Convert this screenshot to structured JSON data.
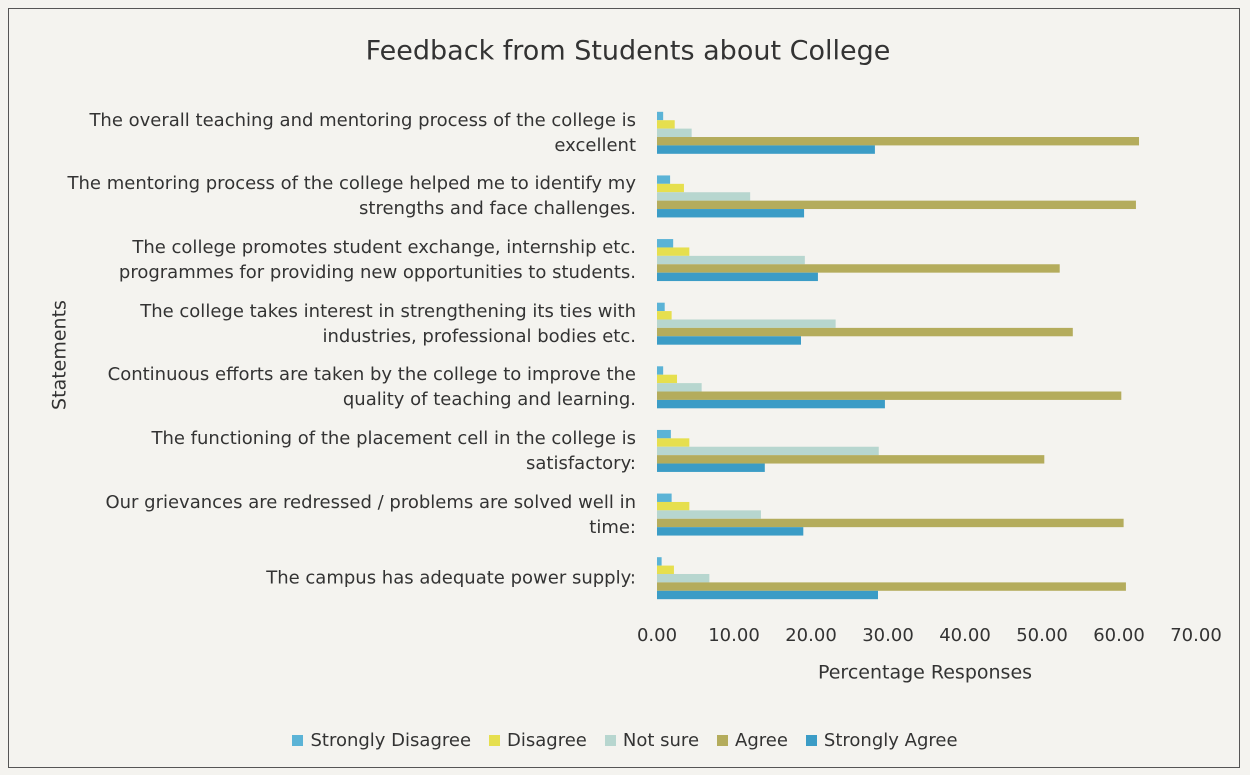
{
  "chart_data": {
    "type": "hbar",
    "title": "Feedback from Students about College",
    "xlabel": "Percentage Responses",
    "ylabel": "Statements",
    "categories": [
      "The overall teaching and mentoring process of the college is excellent",
      "The mentoring process of the college helped me to identify my strengths and face challenges.",
      "The college promotes student exchange, internship etc. programmes for providing new opportunities to students.",
      "The college takes interest in strengthening its ties with industries, professional bodies etc.",
      "Continuous efforts are taken by the college to improve the quality of teaching and learning.",
      "The functioning of the placement cell in the college is satisfactory:",
      "Our grievances are redressed / problems are solved well in time:",
      "The campus has adequate power supply:"
    ],
    "series": [
      {
        "name": "Strongly Disagree",
        "color": "#5bb3d6",
        "values": [
          0.8,
          1.7,
          2.1,
          1.0,
          0.8,
          1.8,
          1.9,
          0.6
        ]
      },
      {
        "name": "Disagree",
        "color": "#e6df4e",
        "values": [
          2.3,
          3.5,
          4.2,
          1.9,
          2.6,
          4.2,
          4.2,
          2.2
        ]
      },
      {
        "name": "Not sure",
        "color": "#b7d6cf",
        "values": [
          4.5,
          12.1,
          19.2,
          23.2,
          5.8,
          28.8,
          13.5,
          6.8
        ]
      },
      {
        "name": "Agree",
        "color": "#b4ac5c",
        "values": [
          62.6,
          62.2,
          52.3,
          54.0,
          60.3,
          50.3,
          60.6,
          60.9
        ]
      },
      {
        "name": "Strongly Agree",
        "color": "#3b9cc6",
        "values": [
          28.3,
          19.1,
          20.9,
          18.7,
          29.6,
          14.0,
          19.0,
          28.7
        ]
      }
    ],
    "xlim": [
      0,
      70
    ],
    "xticks": [
      {
        "value": 0,
        "label": "0.00"
      },
      {
        "value": 10,
        "label": "10.00"
      },
      {
        "value": 20,
        "label": "20.00"
      },
      {
        "value": 30,
        "label": "30.00"
      },
      {
        "value": 40,
        "label": "40.00"
      },
      {
        "value": 50,
        "label": "50.00"
      },
      {
        "value": 60,
        "label": "60.00"
      },
      {
        "value": 70,
        "label": "70.00"
      }
    ],
    "legend": "bottom"
  }
}
